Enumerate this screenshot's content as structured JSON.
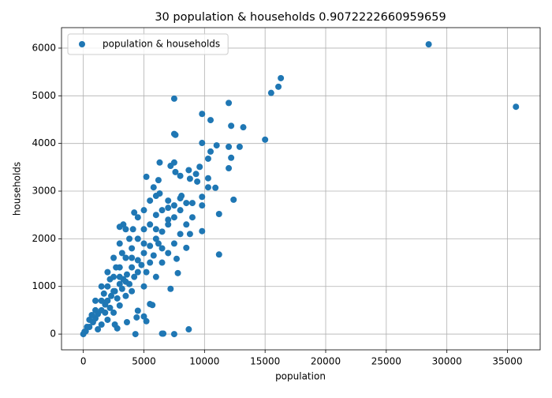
{
  "chart_data": {
    "type": "scatter",
    "title": "30 population & households 0.9072222660959659",
    "xlabel": "population",
    "ylabel": "households",
    "xlim": [
      -1800,
      37700
    ],
    "ylim": [
      -330,
      6430
    ],
    "xticks": [
      0,
      5000,
      10000,
      15000,
      20000,
      25000,
      30000,
      35000
    ],
    "yticks": [
      0,
      1000,
      2000,
      3000,
      4000,
      5000,
      6000
    ],
    "grid": true,
    "legend": "upper-left",
    "series": [
      {
        "name": "population & households",
        "color": "#1f77b4",
        "x": [
          28500,
          35700,
          16300,
          16100,
          15500,
          15000,
          12000,
          7500,
          9800,
          10500,
          12200,
          13200,
          7500,
          7600,
          9800,
          11000,
          12000,
          12900,
          10500,
          10300,
          12200,
          7500,
          6300,
          7200,
          9600,
          12000,
          8700,
          7600,
          9300,
          8000,
          5200,
          6200,
          8800,
          10300,
          9400,
          10300,
          10900,
          5800,
          6300,
          8100,
          9800,
          12400,
          11200,
          9800,
          8800,
          8500,
          11200,
          7700,
          7800,
          7200,
          8700,
          7500,
          6600,
          6500,
          4300,
          4500,
          5000,
          4400,
          5200,
          3600,
          2800,
          2600,
          5500,
          5700,
          200,
          500,
          800,
          1000,
          1200,
          1500,
          1800,
          2000,
          2300,
          2600,
          3000,
          3300,
          3600,
          4000,
          4500,
          5000,
          5500,
          6000,
          6500,
          7000,
          7500,
          1000,
          1500,
          2000,
          2500,
          3000,
          3500,
          4200,
          4500,
          5000,
          5500,
          6000,
          7000,
          8000,
          9000,
          9800,
          1500,
          2000,
          2500,
          3000,
          3500,
          4000,
          5000,
          6000,
          6500,
          7000,
          7500,
          8000,
          8500,
          9000,
          500,
          1000,
          1500,
          2000,
          2500,
          3000,
          3500,
          4000,
          4500,
          5000,
          5500,
          6000,
          6500,
          7000,
          2500,
          3500,
          4500,
          5500,
          6500,
          3000,
          4000,
          5000,
          6000,
          7000,
          8000,
          1200,
          1800,
          2200,
          2800,
          3200,
          3800,
          4200,
          4800,
          5200,
          5800,
          6200,
          7500,
          8500,
          3800,
          3200,
          2700,
          2200,
          1700,
          700,
          300,
          100,
          0,
          3300,
          4100,
          3000
        ],
        "values": [
          6080,
          4770,
          5370,
          5190,
          5060,
          4080,
          4850,
          4940,
          4620,
          4490,
          4370,
          4340,
          4200,
          4180,
          4010,
          3960,
          3930,
          3930,
          3830,
          3680,
          3700,
          3600,
          3600,
          3530,
          3510,
          3480,
          3440,
          3400,
          3360,
          3320,
          3300,
          3230,
          3260,
          3270,
          3200,
          3080,
          3070,
          3080,
          2950,
          2900,
          2880,
          2820,
          2520,
          2160,
          2100,
          1810,
          1670,
          1580,
          1280,
          950,
          100,
          0,
          10,
          10,
          0,
          490,
          370,
          350,
          270,
          250,
          120,
          200,
          630,
          610,
          60,
          150,
          250,
          330,
          420,
          500,
          620,
          700,
          800,
          900,
          1050,
          1150,
          1250,
          1400,
          1550,
          1700,
          1850,
          2000,
          2150,
          2300,
          2450,
          700,
          1000,
          1300,
          1600,
          1900,
          2200,
          2550,
          2450,
          2600,
          2800,
          2900,
          2800,
          2850,
          2750,
          2700,
          200,
          300,
          450,
          600,
          800,
          900,
          1000,
          1200,
          1500,
          1700,
          1900,
          2100,
          2300,
          2450,
          300,
          500,
          700,
          1000,
          1200,
          1400,
          1600,
          1800,
          2000,
          2200,
          2300,
          2500,
          2600,
          2650,
          900,
          1100,
          1300,
          1500,
          1800,
          1200,
          1600,
          1900,
          2200,
          2400,
          2600,
          100,
          450,
          550,
          750,
          950,
          1050,
          1200,
          1450,
          1300,
          1650,
          1900,
          2700,
          2750,
          2000,
          1700,
          1400,
          1150,
          850,
          400,
          150,
          50,
          0,
          2300,
          2200,
          2250
        ]
      }
    ]
  }
}
